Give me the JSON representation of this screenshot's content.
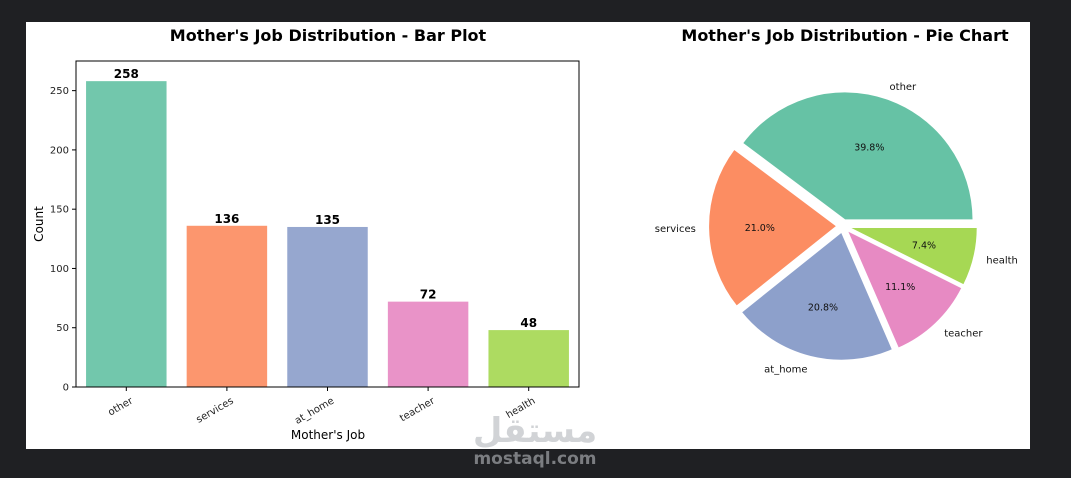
{
  "chart_data": [
    {
      "type": "bar",
      "title": "Mother's Job Distribution - Bar Plot",
      "xlabel": "Mother's Job",
      "ylabel": "Count",
      "categories": [
        "other",
        "services",
        "at_home",
        "teacher",
        "health"
      ],
      "values": [
        258,
        136,
        135,
        72,
        48
      ],
      "value_labels": [
        "258",
        "136",
        "135",
        "72",
        "48"
      ],
      "colors": [
        "#66c2a5",
        "#fc8d62",
        "#8da0cb",
        "#e78ac3",
        "#a6d854"
      ],
      "ylim": [
        0,
        275
      ],
      "yticks": [
        0,
        50,
        100,
        150,
        200,
        250
      ],
      "ytick_labels": [
        "0",
        "50",
        "100",
        "150",
        "200",
        "250"
      ],
      "grid": false
    },
    {
      "type": "pie",
      "title": "Mother's Job Distribution - Pie Chart",
      "labels": [
        "other",
        "services",
        "at_home",
        "teacher",
        "health"
      ],
      "values": [
        39.8,
        21.0,
        20.8,
        11.1,
        7.4
      ],
      "pct_labels": [
        "39.8%",
        "21.0%",
        "20.8%",
        "11.1%",
        "7.4%"
      ],
      "colors": [
        "#66c2a5",
        "#fc8d62",
        "#8da0cb",
        "#e78ac3",
        "#a6d854"
      ],
      "explode": [
        0.05,
        0.05,
        0.05,
        0.05,
        0.05
      ]
    }
  ],
  "watermark": {
    "arabic": "مستقل",
    "latin": "mostaql.com"
  }
}
